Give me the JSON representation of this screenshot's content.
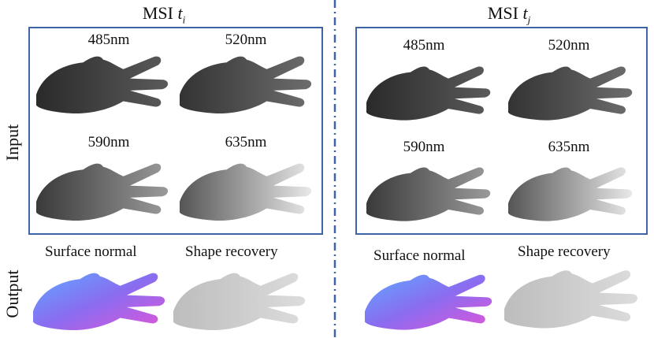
{
  "columns": [
    {
      "title_prefix": "MSI",
      "title_var": "t",
      "title_sub": "i"
    },
    {
      "title_prefix": "MSI",
      "title_var": "t",
      "title_sub": "j"
    }
  ],
  "row_labels": {
    "input": "Input",
    "output": "Output"
  },
  "wavelengths": [
    "485nm",
    "520nm",
    "590nm",
    "635nm"
  ],
  "output_labels": {
    "normal": "Surface normal",
    "shape": "Shape recovery"
  },
  "colors": {
    "frame": "#3e63a6",
    "divider": "#3e63a6"
  }
}
